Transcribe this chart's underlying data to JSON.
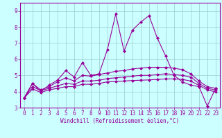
{
  "x": [
    0,
    1,
    2,
    3,
    4,
    5,
    6,
    7,
    8,
    9,
    10,
    11,
    12,
    13,
    14,
    15,
    16,
    17,
    18,
    19,
    20,
    21,
    22,
    23
  ],
  "line1": [
    3.6,
    4.5,
    4.0,
    4.4,
    4.7,
    5.3,
    4.9,
    5.8,
    5.0,
    5.1,
    6.6,
    8.8,
    6.5,
    7.8,
    8.3,
    8.7,
    7.3,
    6.2,
    5.0,
    4.6,
    4.4,
    4.3,
    3.1,
    4.2
  ],
  "line2": [
    3.6,
    4.5,
    4.1,
    4.3,
    4.6,
    4.85,
    4.65,
    5.0,
    4.95,
    5.05,
    5.15,
    5.25,
    5.3,
    5.4,
    5.45,
    5.5,
    5.5,
    5.5,
    5.45,
    5.35,
    5.1,
    4.65,
    4.3,
    4.2
  ],
  "line3": [
    3.6,
    4.3,
    4.05,
    4.2,
    4.35,
    4.5,
    4.45,
    4.65,
    4.65,
    4.7,
    4.8,
    4.85,
    4.9,
    4.95,
    5.0,
    5.0,
    5.05,
    5.1,
    5.05,
    5.0,
    4.9,
    4.5,
    4.2,
    4.1
  ],
  "line4": [
    3.6,
    4.15,
    3.95,
    4.1,
    4.2,
    4.3,
    4.3,
    4.45,
    4.45,
    4.5,
    4.6,
    4.62,
    4.65,
    4.68,
    4.7,
    4.72,
    4.75,
    4.78,
    4.78,
    4.75,
    4.65,
    4.38,
    4.1,
    3.98
  ],
  "color": "#990099",
  "bg_color": "#ccffff",
  "grid_color": "#99cccc",
  "ylim": [
    3.0,
    9.5
  ],
  "xlim": [
    -0.5,
    23.5
  ],
  "yticks": [
    3,
    4,
    5,
    6,
    7,
    8,
    9
  ],
  "xticks": [
    0,
    1,
    2,
    3,
    4,
    5,
    6,
    7,
    8,
    9,
    10,
    11,
    12,
    13,
    14,
    15,
    16,
    17,
    18,
    19,
    20,
    21,
    22,
    23
  ],
  "xlabel": "Windchill (Refroidissement éolien,°C)",
  "marker": "D",
  "markersize": 2.0,
  "linewidth": 0.8,
  "tick_fontsize": 5.5,
  "xlabel_fontsize": 5.5
}
